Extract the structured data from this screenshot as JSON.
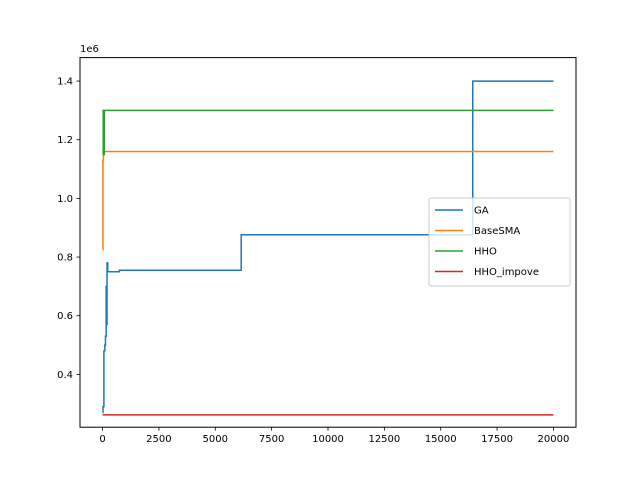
{
  "chart_data": {
    "type": "line",
    "title": "",
    "xlabel": "",
    "ylabel": "",
    "y_offset_label": "1e6",
    "xlim": [
      -1000,
      21000
    ],
    "ylim": [
      0.22,
      1.48
    ],
    "x_ticks": [
      0,
      2500,
      5000,
      7500,
      10000,
      12500,
      15000,
      17500,
      20000
    ],
    "x_tick_labels": [
      "0",
      "2500",
      "5000",
      "7500",
      "10000",
      "12500",
      "15000",
      "17500",
      "20000"
    ],
    "y_ticks": [
      0.4,
      0.6,
      0.8,
      1.0,
      1.2,
      1.4
    ],
    "y_tick_labels": [
      "0.4",
      "0.6",
      "0.8",
      "1.0",
      "1.2",
      "1.4"
    ],
    "grid": false,
    "legend_position": "center-right",
    "series": [
      {
        "name": "GA",
        "color": "#1f77b4",
        "step": true,
        "points": [
          [
            0,
            0.27
          ],
          [
            20,
            0.29
          ],
          [
            60,
            0.48
          ],
          [
            100,
            0.5
          ],
          [
            130,
            0.53
          ],
          [
            160,
            0.7
          ],
          [
            180,
            0.57
          ],
          [
            200,
            0.78
          ],
          [
            230,
            0.75
          ],
          [
            700,
            0.75
          ],
          [
            750,
            0.755
          ],
          [
            6100,
            0.755
          ],
          [
            6150,
            0.876
          ],
          [
            16400,
            0.876
          ],
          [
            16420,
            1.4
          ],
          [
            20000,
            1.4
          ]
        ]
      },
      {
        "name": "BaseSMA",
        "color": "#ff7f0e",
        "step": true,
        "points": [
          [
            0,
            0.825
          ],
          [
            20,
            1.13
          ],
          [
            40,
            1.295
          ],
          [
            60,
            1.16
          ],
          [
            20000,
            1.16
          ]
        ]
      },
      {
        "name": "HHO",
        "color": "#2ca02c",
        "step": true,
        "points": [
          [
            0,
            1.15
          ],
          [
            30,
            1.3
          ],
          [
            50,
            1.15
          ],
          [
            80,
            1.3
          ],
          [
            20000,
            1.3
          ]
        ]
      },
      {
        "name": "HHO_impove",
        "color": "#d62728",
        "step": true,
        "points": [
          [
            0,
            0.262
          ],
          [
            20000,
            0.262
          ]
        ]
      }
    ]
  }
}
